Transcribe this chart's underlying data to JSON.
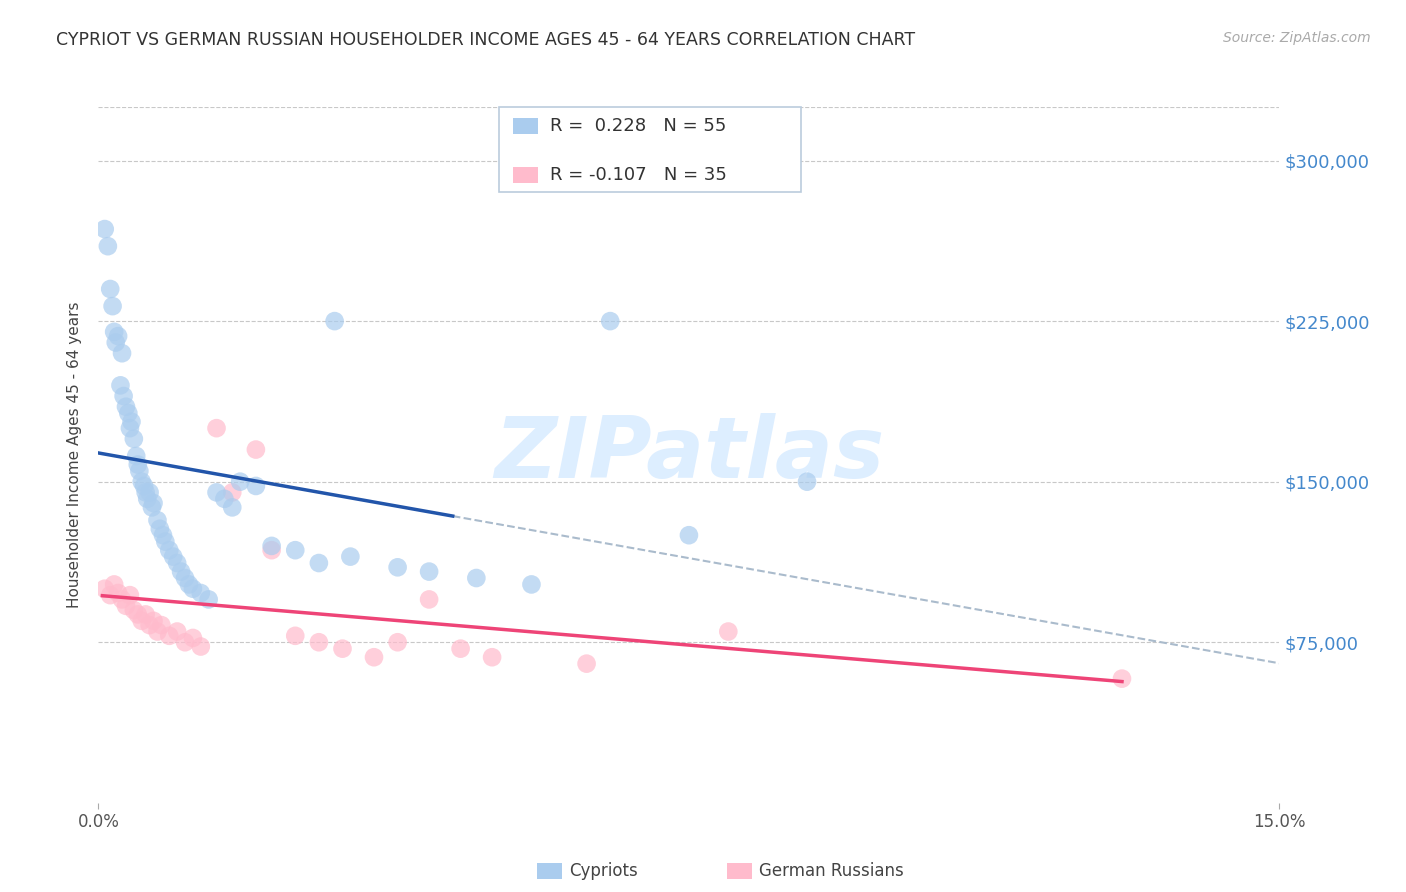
{
  "title": "CYPRIOT VS GERMAN RUSSIAN HOUSEHOLDER INCOME AGES 45 - 64 YEARS CORRELATION CHART",
  "source": "Source: ZipAtlas.com",
  "ylabel": "Householder Income Ages 45 - 64 years",
  "xlim": [
    0.0,
    0.15
  ],
  "ylim": [
    0,
    325000
  ],
  "yticks": [
    75000,
    150000,
    225000,
    300000
  ],
  "ytick_labels": [
    "$75,000",
    "$150,000",
    "$225,000",
    "$300,000"
  ],
  "background_color": "#ffffff",
  "grid_color": "#c8c8c8",
  "title_color": "#333333",
  "source_color": "#aaaaaa",
  "legend_label1": "Cypriots",
  "legend_label2": "German Russians",
  "blue_color": "#7bafd4",
  "pink_color": "#f4a0b0",
  "blue_fill": "#aaccee",
  "pink_fill": "#ffbbcc",
  "blue_line_color": "#2255aa",
  "pink_line_color": "#ee4477",
  "dashed_line_color": "#aabbcc",
  "ytick_color": "#4488cc",
  "watermark_color": "#ddeeff",
  "cypriot_x": [
    0.0008,
    0.0012,
    0.0015,
    0.0018,
    0.002,
    0.0022,
    0.0025,
    0.0028,
    0.003,
    0.0032,
    0.0035,
    0.0038,
    0.004,
    0.0042,
    0.0045,
    0.0048,
    0.005,
    0.0052,
    0.0055,
    0.0058,
    0.006,
    0.0062,
    0.0065,
    0.0068,
    0.007,
    0.0075,
    0.0078,
    0.0082,
    0.0085,
    0.009,
    0.0095,
    0.01,
    0.0105,
    0.011,
    0.0115,
    0.012,
    0.013,
    0.014,
    0.015,
    0.016,
    0.017,
    0.018,
    0.02,
    0.022,
    0.025,
    0.028,
    0.03,
    0.032,
    0.038,
    0.042,
    0.048,
    0.055,
    0.065,
    0.075,
    0.09
  ],
  "cypriot_y": [
    268000,
    260000,
    240000,
    232000,
    220000,
    215000,
    218000,
    195000,
    210000,
    190000,
    185000,
    182000,
    175000,
    178000,
    170000,
    162000,
    158000,
    155000,
    150000,
    148000,
    145000,
    142000,
    145000,
    138000,
    140000,
    132000,
    128000,
    125000,
    122000,
    118000,
    115000,
    112000,
    108000,
    105000,
    102000,
    100000,
    98000,
    95000,
    145000,
    142000,
    138000,
    150000,
    148000,
    120000,
    118000,
    112000,
    225000,
    115000,
    110000,
    108000,
    105000,
    102000,
    225000,
    125000,
    150000
  ],
  "german_x": [
    0.0008,
    0.0015,
    0.002,
    0.0025,
    0.003,
    0.0035,
    0.004,
    0.0045,
    0.005,
    0.0055,
    0.006,
    0.0065,
    0.007,
    0.0075,
    0.008,
    0.009,
    0.01,
    0.011,
    0.012,
    0.013,
    0.015,
    0.017,
    0.02,
    0.022,
    0.025,
    0.028,
    0.031,
    0.035,
    0.038,
    0.042,
    0.046,
    0.05,
    0.062,
    0.08,
    0.13
  ],
  "german_y": [
    100000,
    97000,
    102000,
    98000,
    95000,
    92000,
    97000,
    90000,
    88000,
    85000,
    88000,
    83000,
    85000,
    80000,
    83000,
    78000,
    80000,
    75000,
    77000,
    73000,
    175000,
    145000,
    165000,
    118000,
    78000,
    75000,
    72000,
    68000,
    75000,
    95000,
    72000,
    68000,
    65000,
    80000,
    58000
  ]
}
